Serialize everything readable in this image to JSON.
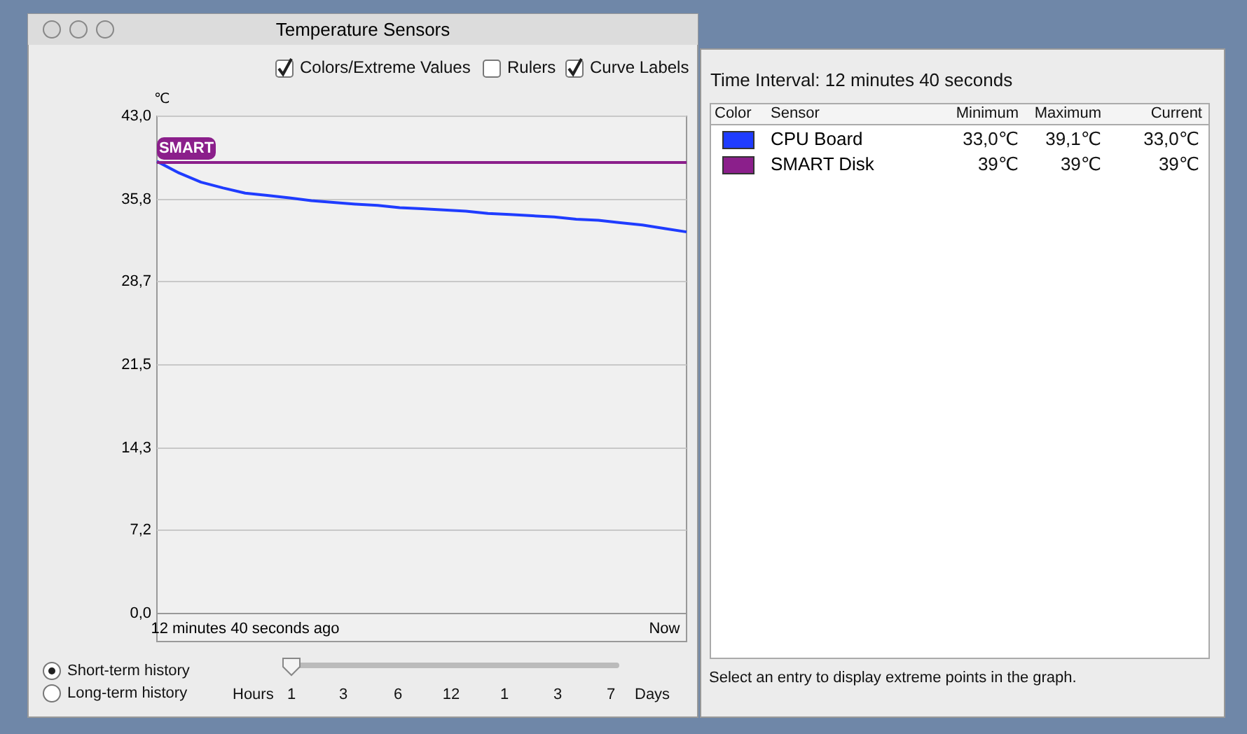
{
  "chart_data": {
    "type": "line",
    "title": "Temperature Sensors",
    "ylabel": "℃",
    "categories": [
      null,
      null,
      null,
      null,
      "12 minutes 40 seconds ago",
      null,
      null,
      null,
      null,
      null,
      null,
      null,
      null,
      null,
      null,
      null,
      null,
      null,
      null,
      null,
      null,
      null,
      null,
      "Now",
      null
    ],
    "ylim": [
      0,
      43
    ],
    "yticks": [
      {
        "value": 0,
        "label": "0,0"
      },
      {
        "value": 7.2,
        "label": "7,2"
      },
      {
        "value": 14.3,
        "label": "14,3"
      },
      {
        "value": 21.5,
        "label": "21,5"
      },
      {
        "value": 28.7,
        "label": "28,7"
      },
      {
        "value": 35.8,
        "label": "35,8"
      },
      {
        "value": 43,
        "label": "43,0"
      }
    ],
    "grid": "y",
    "legend": "right",
    "marker": "none",
    "line_style": "solid",
    "series": [
      {
        "name": "CPU Board",
        "color": "#1f3cff",
        "values": [
          39.1,
          38.1,
          37.3,
          36.8,
          36.35,
          36.15,
          35.95,
          35.7,
          35.55,
          35.4,
          35.3,
          35.1,
          35.0,
          34.9,
          34.8,
          34.6,
          34.5,
          34.4,
          34.3,
          34.1,
          34.0,
          33.8,
          33.6,
          33.3,
          33.0
        ]
      },
      {
        "name": "SMART Disk",
        "color": "#8b1f8b",
        "values": [
          39,
          39,
          39,
          39,
          39,
          39,
          39,
          39,
          39,
          39,
          39,
          39,
          39,
          39,
          39,
          39,
          39,
          39,
          39,
          39,
          39,
          39,
          39,
          39,
          39
        ]
      }
    ],
    "annotations": [
      "Colors/Extreme Values",
      "Rulers",
      "Curve Labels",
      "SMART",
      "Short-term history",
      "Long-term history",
      "Hours",
      "1",
      "3",
      "6",
      "12",
      "1",
      "3",
      "7",
      "Days",
      "Time Interval: 12 minutes 40 seconds",
      "Color",
      "Sensor",
      "Minimum",
      "Maximum",
      "Current",
      "33,0℃",
      "39,1℃",
      "33,0℃",
      "39℃",
      "39℃",
      "39℃",
      "Select an entry to display extreme points in the graph."
    ]
  }
}
